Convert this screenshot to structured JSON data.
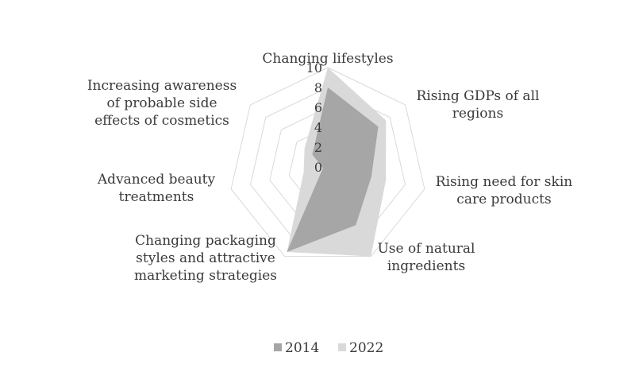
{
  "chart_data": {
    "type": "radar",
    "categories": [
      "Changing lifestyles",
      "Rising GDPs of all regions",
      "Rising need for skin care products",
      "Use of natural ingredients",
      "Changing packaging styles and attractive marketing strategies",
      "Advanced beauty treatments",
      "Increasing awareness of probable side effects of cosmetics"
    ],
    "category_label_lines": [
      [
        "Changing lifestyles"
      ],
      [
        "Rising GDPs of all",
        "regions"
      ],
      [
        "Rising need for skin",
        "care products"
      ],
      [
        "Use of natural",
        "ingredients"
      ],
      [
        "Changing packaging",
        "styles and attractive",
        "marketing strategies"
      ],
      [
        "Advanced beauty",
        "treatments"
      ],
      [
        "Increasing awareness",
        "of probable side",
        "effects of cosmetics"
      ]
    ],
    "series": [
      {
        "name": "2014",
        "values": [
          8,
          6.5,
          4.5,
          6.5,
          9.5,
          0.5,
          2
        ],
        "color": "#a6a6a6"
      },
      {
        "name": "2022",
        "values": [
          10,
          7.5,
          6,
          10,
          9.5,
          2.5,
          3
        ],
        "color": "#d9d9d9"
      }
    ],
    "rlim": [
      0,
      10
    ],
    "ticks": [
      "0",
      "2",
      "4",
      "6",
      "8",
      "10"
    ],
    "grid": true,
    "legend_position": "bottom"
  }
}
